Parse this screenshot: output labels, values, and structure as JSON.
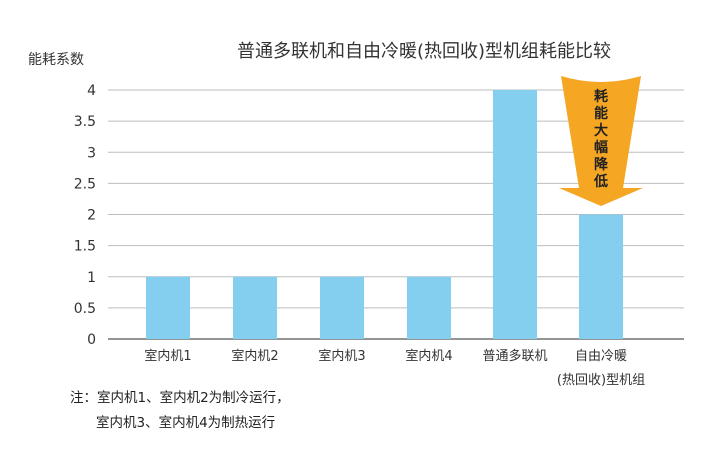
{
  "chart_data": {
    "type": "bar",
    "title": "普通多联机和自由冷暖(热回收)型机组耗能比较",
    "ylabel": "能耗系数",
    "xlabel": "",
    "ylim": [
      0,
      4
    ],
    "yticks": [
      "0",
      "0.5",
      "1",
      "1.5",
      "2",
      "2.5",
      "3",
      "3.5",
      "4"
    ],
    "categories": [
      "室内机1",
      "室内机2",
      "室内机3",
      "室内机4",
      "普通多联机",
      "自由冷暖\n(热回收)型机组"
    ],
    "values": [
      1,
      1,
      1,
      1,
      4,
      2
    ],
    "grid": true,
    "bar_color": "#84CFF0",
    "annotation": {
      "text": "耗能大幅降低",
      "color": "#F5A623"
    }
  },
  "notes": {
    "line1": "注：室内机1、室内机2为制冷运行，",
    "line2": "室内机3、室内机4为制热运行"
  }
}
